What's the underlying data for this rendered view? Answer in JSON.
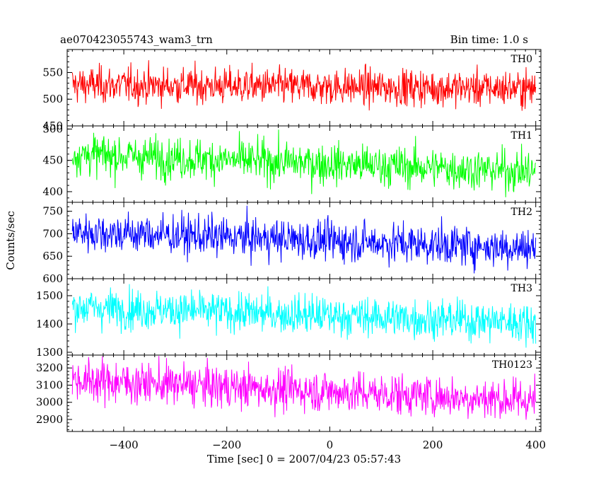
{
  "header": {
    "left_title": "ae070423055743_wam3_trn",
    "right_title": "Bin time: 1.0 s"
  },
  "axes": {
    "ylabel": "Counts/sec",
    "xlabel": "Time [sec] 0 = 2007/04/23 05:57:43"
  },
  "chart_data": {
    "type": "line",
    "x_range": [
      -510,
      410
    ],
    "x_ticks": [
      -400,
      -200,
      0,
      200,
      400
    ],
    "x_tick_labels": [
      "−400",
      "−200",
      "0",
      "200",
      "400"
    ],
    "bin_seconds": 1.0,
    "panels": [
      {
        "label": "TH0",
        "color": "#ff0000",
        "ylim": [
          450,
          593
        ],
        "yticks": [
          450,
          500,
          550
        ],
        "ytick_labels": [
          "450",
          "500",
          "550"
        ],
        "trend": {
          "start": 527,
          "end": 520
        },
        "band": [
          470,
          585
        ]
      },
      {
        "label": "TH1",
        "color": "#00ff00",
        "ylim": [
          383,
          505
        ],
        "yticks": [
          400,
          450,
          500
        ],
        "ytick_labels": [
          "400",
          "450",
          "500"
        ],
        "trend": {
          "start": 460,
          "end": 432
        },
        "band": [
          395,
          505
        ]
      },
      {
        "label": "TH2",
        "color": "#0000ff",
        "ylim": [
          600,
          770
        ],
        "yticks": [
          600,
          650,
          700,
          750
        ],
        "ytick_labels": [
          "600",
          "650",
          "700",
          "750"
        ],
        "trend": {
          "start": 705,
          "end": 668
        },
        "band": [
          620,
          770
        ]
      },
      {
        "label": "TH3",
        "color": "#00ffff",
        "ylim": [
          1290,
          1560
        ],
        "yticks": [
          1300,
          1400,
          1500
        ],
        "ytick_labels": [
          "1300",
          "1400",
          "1500"
        ],
        "trend": {
          "start": 1460,
          "end": 1405
        },
        "band": [
          1320,
          1555
        ]
      },
      {
        "label": "TH0123",
        "color": "#ff00ff",
        "ylim": [
          2830,
          3275
        ],
        "yticks": [
          2900,
          3000,
          3100,
          3200
        ],
        "ytick_labels": [
          "2900",
          "3000",
          "3100",
          "3200"
        ],
        "trend": {
          "start": 3130,
          "end": 3010
        },
        "band": [
          2860,
          3270
        ]
      }
    ]
  }
}
